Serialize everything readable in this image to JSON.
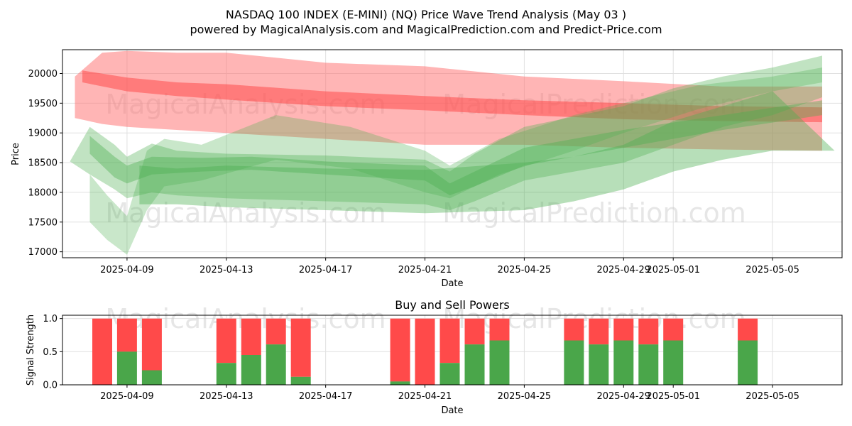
{
  "title": "NASDAQ 100 INDEX (E-MINI) (NQ) Price Wave Trend Analysis (May 03 )",
  "subtitle": "powered by MagicalAnalysis.com and MagicalPrediction.com and Predict-Price.com",
  "watermarks": [
    "MagicalAnalysis.com",
    "MagicalPrediction.com"
  ],
  "colors": {
    "buy": "#4aa64a",
    "sell": "#ff4a4a",
    "green_band": "#4caf50",
    "red_band": "#ff6b6b",
    "grid": "#e0e0e0"
  },
  "chart_data": [
    {
      "type": "area",
      "name": "price-wave-chart",
      "xlabel": "Date",
      "ylabel": "Price",
      "ylim": [
        16900,
        20400
      ],
      "xlim_days": [
        -2.6,
        28.8
      ],
      "x_ticks": [
        {
          "label": "2025-04-09",
          "day": 0
        },
        {
          "label": "2025-04-13",
          "day": 4
        },
        {
          "label": "2025-04-17",
          "day": 8
        },
        {
          "label": "2025-04-21",
          "day": 12
        },
        {
          "label": "2025-04-25",
          "day": 16
        },
        {
          "label": "2025-04-29",
          "day": 20
        },
        {
          "label": "2025-05-01",
          "day": 22
        },
        {
          "label": "2025-05-05",
          "day": 26
        }
      ],
      "y_ticks": [
        17000,
        17500,
        18000,
        18500,
        19000,
        19500,
        20000
      ],
      "series": [
        {
          "name": "red-wave-outer",
          "color": "#ff6b6b",
          "opacity": 0.5,
          "x": [
            -2.1,
            -1,
            0,
            2,
            4,
            8,
            12,
            16,
            20,
            24,
            28
          ],
          "upper": [
            19950,
            20350,
            20380,
            20350,
            20350,
            20180,
            20120,
            19950,
            19870,
            19780,
            19780
          ],
          "lower": [
            19250,
            19150,
            19100,
            19050,
            19000,
            18900,
            18800,
            18800,
            18750,
            18720,
            18700
          ]
        },
        {
          "name": "red-wave-core",
          "color": "#ff4a4a",
          "opacity": 0.55,
          "x": [
            -1.8,
            0,
            2,
            4,
            8,
            12,
            16,
            20,
            24,
            28
          ],
          "upper": [
            20050,
            19930,
            19850,
            19820,
            19700,
            19620,
            19550,
            19500,
            19450,
            19430
          ],
          "lower": [
            19850,
            19700,
            19620,
            19560,
            19450,
            19380,
            19300,
            19230,
            19200,
            19180
          ]
        },
        {
          "name": "green-wave-band-1",
          "color": "#4caf50",
          "opacity": 0.35,
          "x": [
            -2.3,
            -1.5,
            -0.5,
            0,
            1,
            2,
            4,
            8,
            12,
            13,
            14,
            16,
            20,
            22,
            24,
            26,
            28
          ],
          "upper": [
            18520,
            19100,
            18800,
            18600,
            18820,
            18700,
            18650,
            18620,
            18550,
            18350,
            18650,
            19100,
            19450,
            19750,
            19950,
            20100,
            20300
          ],
          "lower": [
            18520,
            18300,
            18050,
            17900,
            18000,
            17950,
            17900,
            17850,
            17800,
            17700,
            17850,
            18200,
            18500,
            18800,
            19100,
            19300,
            19600
          ]
        },
        {
          "name": "green-wave-band-2",
          "color": "#4caf50",
          "opacity": 0.3,
          "x": [
            -1.5,
            -0.8,
            0,
            0.8,
            1.5,
            3,
            6,
            9,
            12,
            13,
            15,
            18,
            20,
            23,
            26,
            28
          ],
          "upper": [
            18300,
            17950,
            17600,
            18700,
            18900,
            18800,
            19300,
            19100,
            18700,
            18450,
            18900,
            19300,
            19500,
            19800,
            19950,
            20100
          ],
          "lower": [
            17500,
            17200,
            16950,
            17700,
            18100,
            18200,
            18550,
            18400,
            18000,
            17900,
            18300,
            18700,
            19000,
            19400,
            19700,
            19850
          ]
        },
        {
          "name": "green-wave-band-3",
          "color": "#4caf50",
          "opacity": 0.4,
          "x": [
            -1.5,
            -0.5,
            0,
            1,
            3,
            5,
            8,
            12,
            13,
            14,
            16,
            20,
            24,
            28
          ],
          "upper": [
            18950,
            18600,
            18450,
            18600,
            18580,
            18600,
            18520,
            18450,
            18150,
            18350,
            18750,
            19050,
            19300,
            19550
          ],
          "lower": [
            18650,
            18250,
            18150,
            18300,
            18350,
            18380,
            18300,
            18200,
            17950,
            18100,
            18450,
            18750,
            19050,
            19300
          ]
        },
        {
          "name": "green-wave-band-4",
          "color": "#4caf50",
          "opacity": 0.4,
          "x": [
            0.5,
            2,
            4,
            8,
            12,
            16,
            18,
            20,
            22,
            24,
            26,
            28.5
          ],
          "upper": [
            18450,
            18400,
            18450,
            18400,
            18380,
            18500,
            18600,
            18800,
            19200,
            19450,
            19700,
            18700
          ],
          "lower": [
            17800,
            17800,
            17750,
            17700,
            17650,
            17700,
            17850,
            18050,
            18350,
            18550,
            18700,
            18700
          ]
        }
      ]
    },
    {
      "type": "bar",
      "name": "buy-sell-powers",
      "title": "Buy and Sell Powers",
      "xlabel": "Date",
      "ylabel": "Signal Strength",
      "ylim": [
        0,
        1.05
      ],
      "xlim_days": [
        -2.6,
        28.8
      ],
      "x_ticks": [
        {
          "label": "2025-04-09",
          "day": 0
        },
        {
          "label": "2025-04-13",
          "day": 4
        },
        {
          "label": "2025-04-17",
          "day": 8
        },
        {
          "label": "2025-04-21",
          "day": 12
        },
        {
          "label": "2025-04-25",
          "day": 16
        },
        {
          "label": "2025-04-29",
          "day": 20
        },
        {
          "label": "2025-05-01",
          "day": 22
        },
        {
          "label": "2025-05-05",
          "day": 26
        }
      ],
      "y_ticks": [
        "0.0",
        "0.5",
        "1.0"
      ],
      "bars": [
        {
          "day": -1,
          "buy": 0.0
        },
        {
          "day": 0,
          "buy": 0.5
        },
        {
          "day": 1,
          "buy": 0.22
        },
        {
          "day": 4,
          "buy": 0.33
        },
        {
          "day": 5,
          "buy": 0.45
        },
        {
          "day": 6,
          "buy": 0.61
        },
        {
          "day": 7,
          "buy": 0.12
        },
        {
          "day": 11,
          "buy": 0.05
        },
        {
          "day": 12,
          "buy": 0.0
        },
        {
          "day": 13,
          "buy": 0.33
        },
        {
          "day": 14,
          "buy": 0.61
        },
        {
          "day": 15,
          "buy": 0.67
        },
        {
          "day": 18,
          "buy": 0.67
        },
        {
          "day": 19,
          "buy": 0.61
        },
        {
          "day": 20,
          "buy": 0.67
        },
        {
          "day": 21,
          "buy": 0.61
        },
        {
          "day": 22,
          "buy": 0.67
        },
        {
          "day": 25,
          "buy": 0.67
        }
      ]
    }
  ]
}
